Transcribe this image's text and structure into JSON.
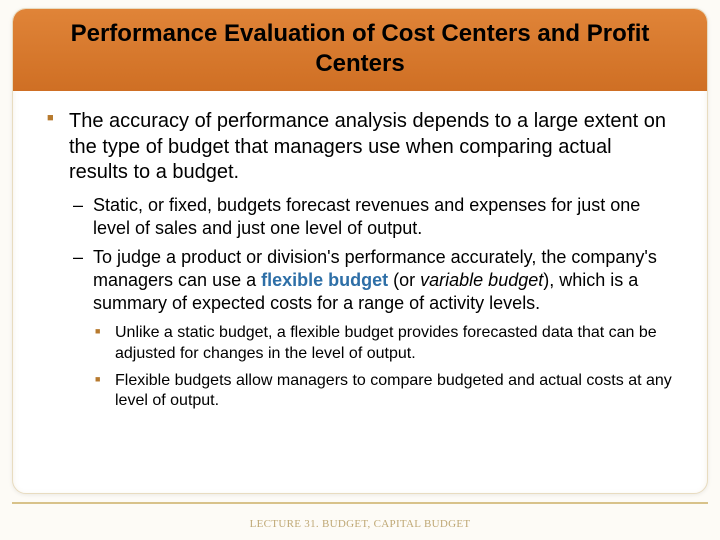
{
  "colors": {
    "header_bg": "#d97b2e",
    "bullet_square": "#b77a2e",
    "term_link": "#2e6fa7",
    "footer_text": "#bfa875",
    "footer_rule": "#d8c28a",
    "slide_bg": "#fdfbf6",
    "box_bg": "#ffffff"
  },
  "typography": {
    "title_fontsize": 24,
    "level1_fontsize": 20,
    "level2_fontsize": 18,
    "level3_fontsize": 16,
    "footer_fontsize": 11,
    "font_family": "Arial"
  },
  "title": "Performance Evaluation of Cost Centers and Profit Centers",
  "bullets": {
    "l1_1": "The accuracy of performance analysis depends to a large extent on the type of budget that managers use when comparing actual results to a budget.",
    "l2_1": "Static, or fixed, budgets forecast revenues and expenses for just one level of sales and just one level of output.",
    "l2_2a": "To judge a product or division's performance accurately, the company's managers can use a ",
    "l2_2_term": "flexible budget",
    "l2_2b": " (or ",
    "l2_2_italic": "variable budget",
    "l2_2c": "), which is a summary of expected costs for a range of activity levels.",
    "l3_1": "Unlike a static budget, a flexible budget provides forecasted data that can be adjusted for changes in the level of output.",
    "l3_2": "Flexible budgets allow managers to compare budgeted and actual costs at any level of output."
  },
  "footer": "LECTURE 31. BUDGET, CAPITAL BUDGET"
}
